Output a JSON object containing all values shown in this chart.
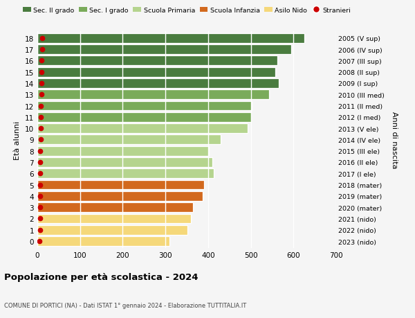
{
  "ages": [
    18,
    17,
    16,
    15,
    14,
    13,
    12,
    11,
    10,
    9,
    8,
    7,
    6,
    5,
    4,
    3,
    2,
    1,
    0
  ],
  "values": [
    625,
    595,
    562,
    558,
    565,
    543,
    503,
    500,
    493,
    430,
    402,
    410,
    413,
    390,
    388,
    365,
    360,
    352,
    310
  ],
  "stranieri": [
    12,
    12,
    10,
    9,
    10,
    9,
    8,
    8,
    8,
    8,
    7,
    7,
    7,
    7,
    7,
    6,
    6,
    6,
    5
  ],
  "right_labels": [
    "2005 (V sup)",
    "2006 (IV sup)",
    "2007 (III sup)",
    "2008 (II sup)",
    "2009 (I sup)",
    "2010 (III med)",
    "2011 (II med)",
    "2012 (I med)",
    "2013 (V ele)",
    "2014 (IV ele)",
    "2015 (III ele)",
    "2016 (II ele)",
    "2017 (I ele)",
    "2018 (mater)",
    "2019 (mater)",
    "2020 (mater)",
    "2021 (nido)",
    "2022 (nido)",
    "2023 (nido)"
  ],
  "bar_colors": [
    "#4a7c3f",
    "#4a7c3f",
    "#4a7c3f",
    "#4a7c3f",
    "#4a7c3f",
    "#7aab5a",
    "#7aab5a",
    "#7aab5a",
    "#b5d48e",
    "#b5d48e",
    "#b5d48e",
    "#b5d48e",
    "#b5d48e",
    "#d2691e",
    "#d2691e",
    "#d2691e",
    "#f5d87a",
    "#f5d87a",
    "#f5d87a"
  ],
  "legend_labels": [
    "Sec. II grado",
    "Sec. I grado",
    "Scuola Primaria",
    "Scuola Infanzia",
    "Asilo Nido",
    "Stranieri"
  ],
  "legend_colors": [
    "#4a7c3f",
    "#7aab5a",
    "#b5d48e",
    "#d2691e",
    "#f5d87a",
    "#cc0000"
  ],
  "stranieri_color": "#cc0000",
  "title": "Popolazione per età scolastica - 2024",
  "subtitle": "COMUNE DI PORTICI (NA) - Dati ISTAT 1° gennaio 2024 - Elaborazione TUTTITALIA.IT",
  "ylabel_left": "Età alunni",
  "ylabel_right": "Anni di nascita",
  "xlim": [
    0,
    700
  ],
  "xticks": [
    0,
    100,
    200,
    300,
    400,
    500,
    600,
    700
  ],
  "background_color": "#f5f5f5",
  "grid_color": "#ffffff"
}
